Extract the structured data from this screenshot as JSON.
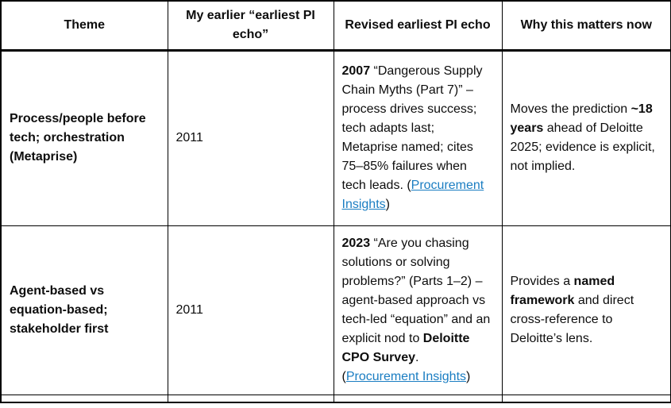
{
  "colors": {
    "link": "#1a7dc2",
    "text": "#0d0d0d",
    "border": "#000000"
  },
  "table": {
    "headers": [
      "Theme",
      "My earlier “earliest PI echo”",
      "Revised earliest PI echo",
      "Why this matters now"
    ],
    "rows": [
      {
        "theme": "Process/people before tech; orchestration (Metaprise)",
        "earlier": "2011",
        "revised": [
          {
            "text": "2007",
            "bold": true
          },
          {
            "text": " “Dangerous Supply Chain Myths (Part 7)” – process drives success; tech adapts last; Metaprise named; cites 75–85% failures when tech leads. ("
          },
          {
            "text": "Procurement Insights",
            "link": true,
            "name": "procurement-insights-link"
          },
          {
            "text": ")"
          }
        ],
        "why": [
          {
            "text": "Moves the prediction "
          },
          {
            "text": "~18 years",
            "bold": true
          },
          {
            "text": " ahead of Deloitte 2025; evidence is explicit, not implied."
          }
        ]
      },
      {
        "theme": "Agent-based vs equation-based; stakeholder first",
        "earlier": "2011",
        "revised": [
          {
            "text": "2023",
            "bold": true
          },
          {
            "text": " “Are you chasing solutions or solving problems?” (Parts 1–2) – agent-based approach vs tech-led “equation” and an explicit nod to "
          },
          {
            "text": "Deloitte CPO Survey",
            "bold": true
          },
          {
            "text": ". ("
          },
          {
            "text": "Procurement Insights",
            "link": true,
            "name": "procurement-insights-link"
          },
          {
            "text": ")"
          }
        ],
        "why": [
          {
            "text": "Provides a "
          },
          {
            "text": "named framework",
            "bold": true
          },
          {
            "text": " and direct cross-reference to Deloitte’s lens."
          }
        ]
      }
    ]
  }
}
